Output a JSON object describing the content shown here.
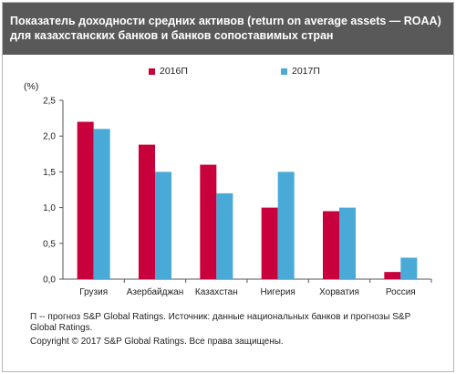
{
  "header": {
    "title": "Показатель доходности средних активов (return on average assets — ROAA) для казахстанских банков и банков сопоставимых стран"
  },
  "chart_data": {
    "type": "bar",
    "title": "Показатель доходности средних активов (return on average assets — ROAA) для казахстанских банков и банков сопоставимых стран",
    "ylabel": "(%)",
    "xlabel": "",
    "categories": [
      "Грузия",
      "Азербайджан",
      "Казахстан",
      "Нигерия",
      "Хорватия",
      "Россия"
    ],
    "series": [
      {
        "name": "2016П",
        "color": "#c8003c",
        "values": [
          2.2,
          1.88,
          1.6,
          1.0,
          0.95,
          0.1
        ]
      },
      {
        "name": "2017П",
        "color": "#4aaad7",
        "values": [
          2.1,
          1.5,
          1.2,
          1.5,
          1.0,
          0.3
        ]
      }
    ],
    "ylim": [
      0,
      2.5
    ],
    "yticks": [
      "0,0",
      "0,5",
      "1,0",
      "1,5",
      "2,0",
      "2,5"
    ],
    "grid": false,
    "legend_position": "top-center"
  },
  "notes": {
    "footnote": "П -- прогноз S&P Global Ratings. Источник: данные национальных банков и прогнозы S&P Global Ratings.",
    "copyright": "Copyright © 2017 S&P Global Ratings. Все права защищены."
  }
}
